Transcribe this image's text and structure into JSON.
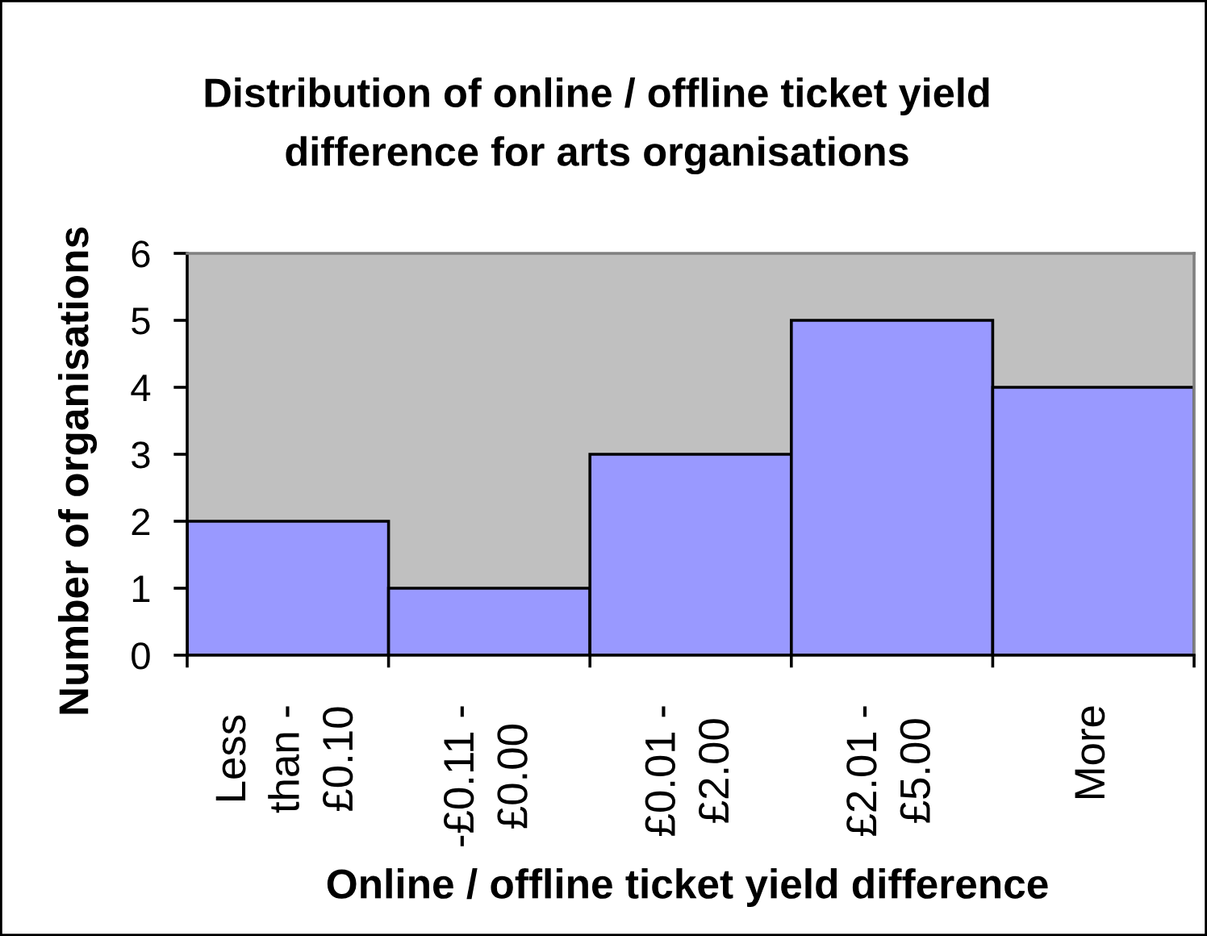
{
  "chart_data": {
    "type": "bar",
    "title": "Distribution of online / offline ticket yield\ndifference for arts organisations",
    "xlabel": "Online / offline ticket yield difference",
    "ylabel": "Number of organisations",
    "categories": [
      "Less\nthan -\n£0.10",
      "-£0.11 -\n£0.00",
      "£0.01 -\n£2.00",
      "£2.01 -\n£5.00",
      "More"
    ],
    "values": [
      2,
      1,
      3,
      5,
      4
    ],
    "color": "#9999ff",
    "ylim": [
      0,
      6
    ],
    "yticks": [
      0,
      1,
      2,
      3,
      4,
      5,
      6
    ]
  }
}
